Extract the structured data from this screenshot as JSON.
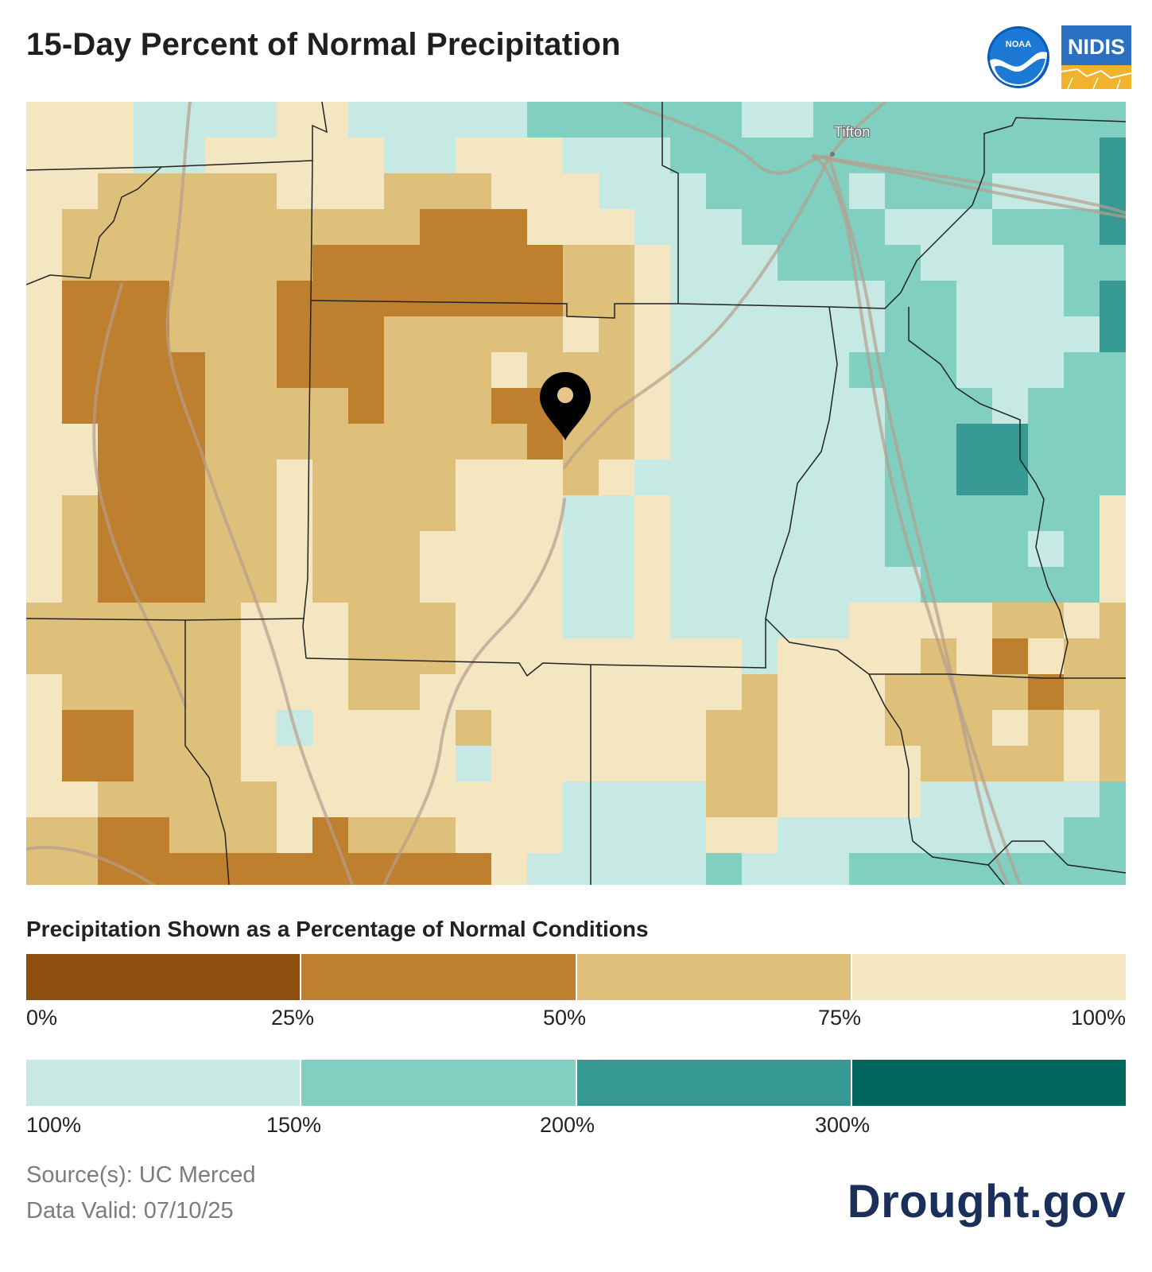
{
  "header": {
    "title": "15-Day Percent of Normal Precipitation"
  },
  "logos": {
    "noaa_text": "NOAA",
    "nidis_text": "NIDIS",
    "noaa_icon": "noaa-logo",
    "nidis_icon": "nidis-logo"
  },
  "map": {
    "city_label": "Tifton",
    "marker_icon": "location-pin-icon",
    "palette": {
      "p0_25": "#8c4f0e",
      "p25_50": "#be7f2e",
      "p50_75": "#dfc07b",
      "p75_100": "#f5e6c2",
      "p100_150": "#c6eae3",
      "p150_200": "#81cfc1",
      "p200_300": "#369993",
      "p300_plus": "#01665e"
    }
  },
  "legend": {
    "title": "Precipitation Shown as a Percentage of Normal Conditions",
    "dry_colors": [
      "#8c4f0e",
      "#be7f2e",
      "#dfc07b",
      "#f5e6c2"
    ],
    "dry_labels": [
      "0%",
      "25%",
      "50%",
      "75%",
      "100%"
    ],
    "wet_colors": [
      "#c6eae3",
      "#81cfc1",
      "#369993",
      "#01665e"
    ],
    "wet_labels": [
      "100%",
      "150%",
      "200%",
      "300%"
    ]
  },
  "footer": {
    "source": "Source(s): UC Merced",
    "valid": "Data Valid: 07/10/25",
    "brand": "Drought.gov"
  }
}
